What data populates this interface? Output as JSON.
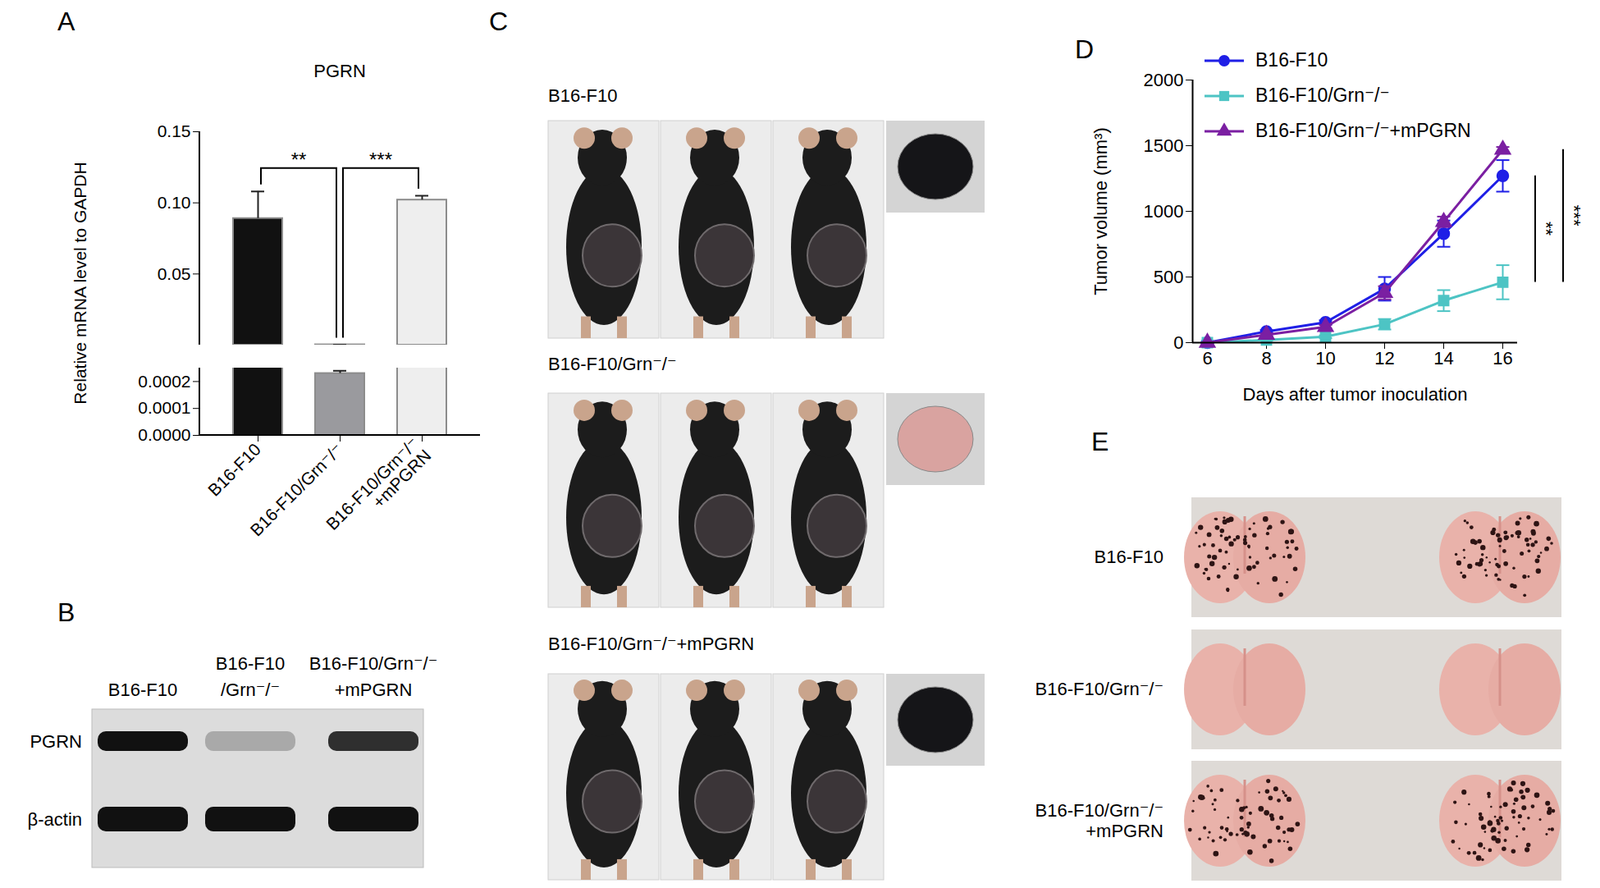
{
  "panel_labels": [
    "A",
    "B",
    "C",
    "D",
    "E"
  ],
  "chart_data": [
    {
      "type": "bar",
      "title": "PGRN",
      "y_label": "Relative mRNA level to GAPDH",
      "categories": [
        "B16-F10",
        "B16-F10/Grn⁻/⁻",
        "B16-F10/Grn⁻/⁻\n+mPGRN"
      ],
      "values": [
        0.089,
        0.00023,
        0.102
      ],
      "errors": [
        0.019,
        1e-05,
        0.003
      ],
      "colors": [
        "#111111",
        "#9a9a9e",
        "#eeeeee"
      ],
      "ylim": [
        0,
        0.15
      ],
      "yticks": [
        0.05,
        {
          "value": 0.1,
          "label": "0.10"
        },
        0.15
      ],
      "lower_ylim": [
        0,
        0.00025
      ],
      "lower_yticks": [
        {
          "value": 0,
          "label": "0.0000"
        },
        0.0001,
        0.0002
      ],
      "annotations": [
        {
          "text": "**",
          "between": [
            0,
            1
          ]
        },
        {
          "text": "***",
          "between": [
            1,
            2
          ]
        }
      ]
    },
    {
      "type": "line",
      "x_label": "Days after tumor inoculation",
      "y_label": "Tumor volume (mm³)",
      "x": [
        6,
        8,
        10,
        12,
        14,
        16
      ],
      "series": [
        {
          "name": "B16-F10",
          "color": "#1f1fe6",
          "marker": "circle",
          "values": [
            0,
            85,
            155,
            410,
            830,
            1270
          ],
          "errors": [
            0,
            10,
            15,
            90,
            100,
            120
          ]
        },
        {
          "name": "B16-F10/Grn⁻/⁻",
          "color": "#4dc4c4",
          "marker": "square",
          "values": [
            0,
            20,
            45,
            140,
            320,
            460
          ],
          "errors": [
            0,
            5,
            10,
            40,
            80,
            130
          ]
        },
        {
          "name": "B16-F10/Grn⁻/⁻+mPGRN",
          "color": "#7b1fa2",
          "marker": "triangle",
          "values": [
            0,
            60,
            120,
            380,
            920,
            1470
          ],
          "errors": [
            0,
            10,
            15,
            50,
            40,
            20
          ]
        }
      ],
      "xlim": [
        5.5,
        16.5
      ],
      "xticks": [
        6,
        8,
        10,
        12,
        14,
        16
      ],
      "ylim": [
        0,
        2000
      ],
      "yticks": [
        0,
        500,
        1000,
        1500,
        2000
      ],
      "legend": "top-left",
      "annotations": [
        {
          "text": "**",
          "between": [
            "B16-F10",
            "B16-F10/Grn⁻/⁻"
          ]
        },
        {
          "text": "***",
          "between": [
            "B16-F10/Grn⁻/⁻+mPGRN",
            "B16-F10/Grn⁻/⁻"
          ]
        }
      ]
    }
  ],
  "blot": {
    "lanes": [
      [
        "B16-F10"
      ],
      [
        "B16-F10",
        "/Grn⁻/⁻"
      ],
      [
        "B16-F10/Grn⁻/⁻",
        "+mPGRN"
      ]
    ],
    "rows": [
      {
        "label": "PGRN",
        "intensity": [
          1,
          0.25,
          0.85
        ]
      },
      {
        "label": "β-actin",
        "intensity": [
          1,
          1,
          1
        ]
      }
    ]
  },
  "tumor_photos": {
    "groups": [
      {
        "label": "B16-F10",
        "tumor_color": "#151518"
      },
      {
        "label": "B16-F10/Grn⁻/⁻",
        "tumor_color": "#d9a3a0"
      },
      {
        "label": "B16-F10/Grn⁻/⁻+mPGRN",
        "tumor_color": "#151518"
      }
    ]
  },
  "lung_photos": {
    "groups": [
      {
        "label": "B16-F10",
        "metastases": true
      },
      {
        "label": "B16-F10/Grn⁻/⁻",
        "metastases": false
      },
      {
        "label": "B16-F10/Grn⁻/⁻\n+mPGRN",
        "metastases": true
      }
    ]
  }
}
